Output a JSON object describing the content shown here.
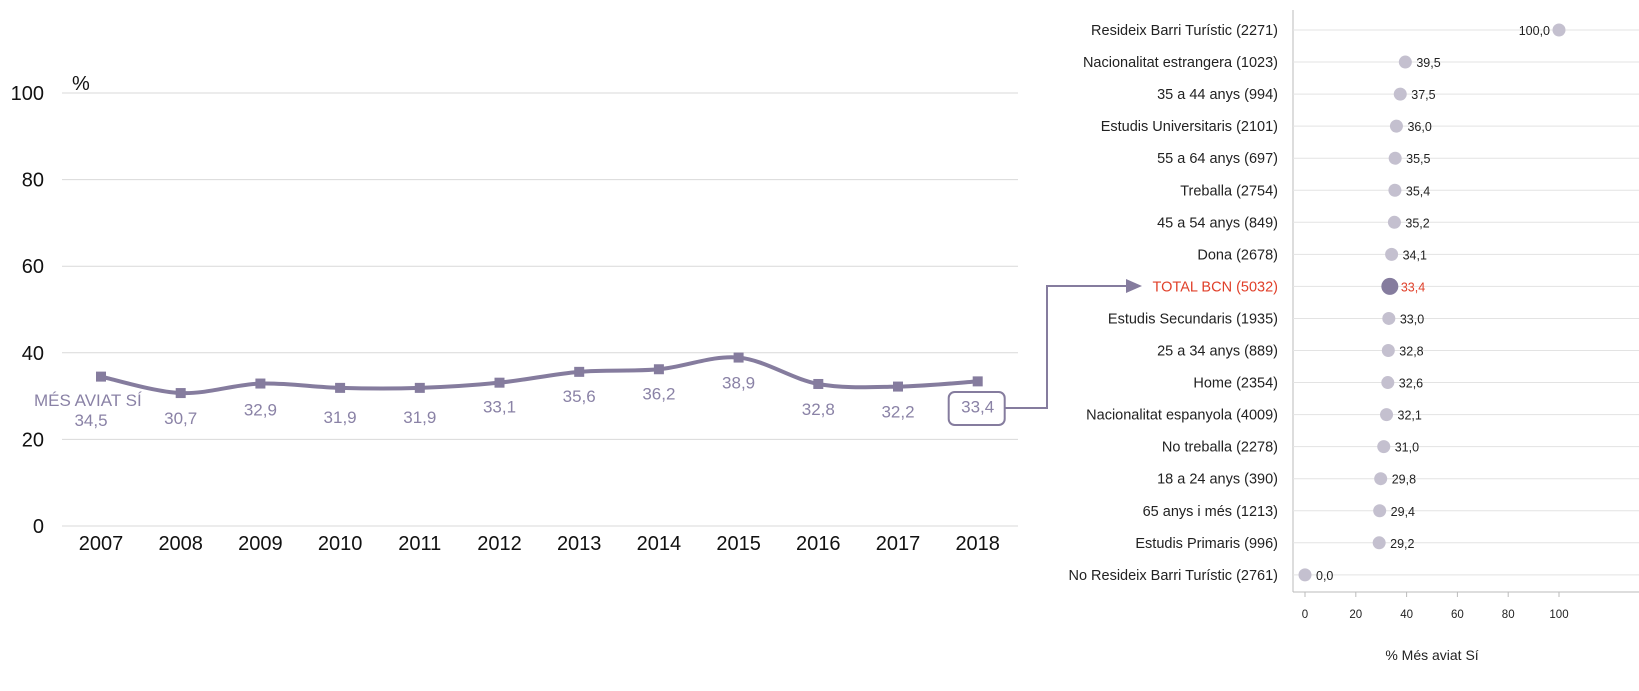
{
  "colors": {
    "line": "#857c9e",
    "dot": "#c4c0cf",
    "dot_highlight": "#857c9e",
    "highlight_text": "#e0402a",
    "grid": "#d9d9d9"
  },
  "chart_data": [
    {
      "type": "line",
      "unit_label": "%",
      "series_label": "MÉS AVIAT SÍ",
      "x": [
        "2007",
        "2008",
        "2009",
        "2010",
        "2011",
        "2012",
        "2013",
        "2014",
        "2015",
        "2016",
        "2017",
        "2018"
      ],
      "values": [
        34.5,
        30.7,
        32.9,
        31.9,
        31.9,
        33.1,
        35.6,
        36.2,
        38.9,
        32.8,
        32.2,
        33.4
      ],
      "value_labels": [
        "34,5",
        "30,7",
        "32,9",
        "31,9",
        "31,9",
        "33,1",
        "35,6",
        "36,2",
        "38,9",
        "32,8",
        "32,2",
        "33,4"
      ],
      "ylim": [
        0,
        100
      ],
      "yticks": [
        0,
        20,
        40,
        60,
        80,
        100
      ],
      "grid": true
    },
    {
      "type": "scatter",
      "categories": [
        "Resideix Barri Turístic (2271)",
        "Nacionalitat estrangera (1023)",
        "35 a 44 anys (994)",
        "Estudis Universitaris (2101)",
        "55 a 64 anys (697)",
        "Treballa (2754)",
        "45 a 54 anys (849)",
        "Dona (2678)",
        "TOTAL BCN (5032)",
        "Estudis Secundaris (1935)",
        "25 a 34 anys (889)",
        "Home (2354)",
        "Nacionalitat espanyola (4009)",
        "No treballa (2278)",
        "18 a 24 anys (390)",
        "65 anys i més (1213)",
        "Estudis Primaris (996)",
        "No Resideix Barri Turístic (2761)"
      ],
      "values": [
        100.0,
        39.5,
        37.5,
        36.0,
        35.5,
        35.4,
        35.2,
        34.1,
        33.4,
        33.0,
        32.8,
        32.6,
        32.1,
        31.0,
        29.8,
        29.4,
        29.2,
        0.0
      ],
      "value_labels": [
        "100,0",
        "39,5",
        "37,5",
        "36,0",
        "35,5",
        "35,4",
        "35,2",
        "34,1",
        "33,4",
        "33,0",
        "32,8",
        "32,6",
        "32,1",
        "31,0",
        "29,8",
        "29,4",
        "29,2",
        "0,0"
      ],
      "highlight_index": 8,
      "xlabel": "% Més aviat Sí",
      "xlim": [
        0,
        100
      ],
      "xticks": [
        "0",
        "20",
        "40",
        "60",
        "80",
        "100"
      ],
      "grid": true
    }
  ]
}
